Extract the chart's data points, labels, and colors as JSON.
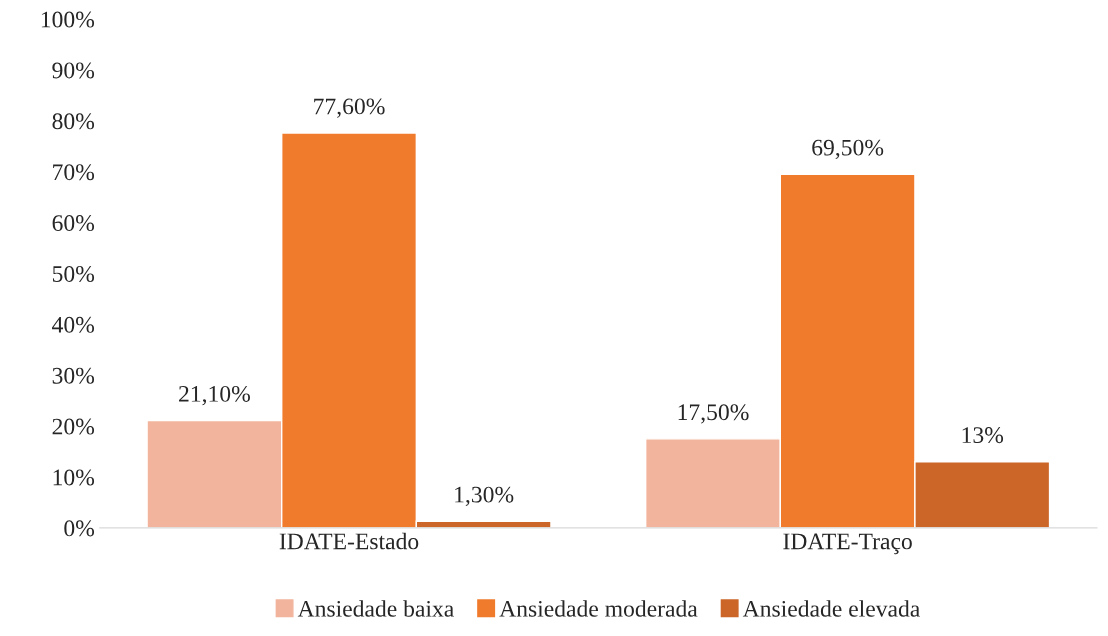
{
  "chart_data": {
    "type": "bar",
    "categories": [
      "IDATE-Estado",
      "IDATE-Traço"
    ],
    "series": [
      {
        "name": "Ansiedade baixa",
        "color": "#f2b49c",
        "values": [
          21.1,
          17.5
        ],
        "value_labels": [
          "21,10%",
          "17,50%"
        ]
      },
      {
        "name": "Ansiedade moderada",
        "color": "#f07b2c",
        "values": [
          77.6,
          69.5
        ],
        "value_labels": [
          "77,60%",
          "69,50%"
        ]
      },
      {
        "name": "Ansiedade elevada",
        "color": "#cc6528",
        "values": [
          1.3,
          13
        ],
        "value_labels": [
          "1,30%",
          "13%"
        ]
      }
    ],
    "ylim": [
      0,
      100
    ],
    "yticks": [
      {
        "value": 0,
        "label": "0%"
      },
      {
        "value": 10,
        "label": "10%"
      },
      {
        "value": 20,
        "label": "20%"
      },
      {
        "value": 30,
        "label": "30%"
      },
      {
        "value": 40,
        "label": "40%"
      },
      {
        "value": 50,
        "label": "50%"
      },
      {
        "value": 60,
        "label": "60%"
      },
      {
        "value": 70,
        "label": "70%"
      },
      {
        "value": 80,
        "label": "80%"
      },
      {
        "value": 90,
        "label": "90%"
      },
      {
        "value": 100,
        "label": "100%"
      }
    ],
    "grid": false,
    "legend": "bottom"
  }
}
